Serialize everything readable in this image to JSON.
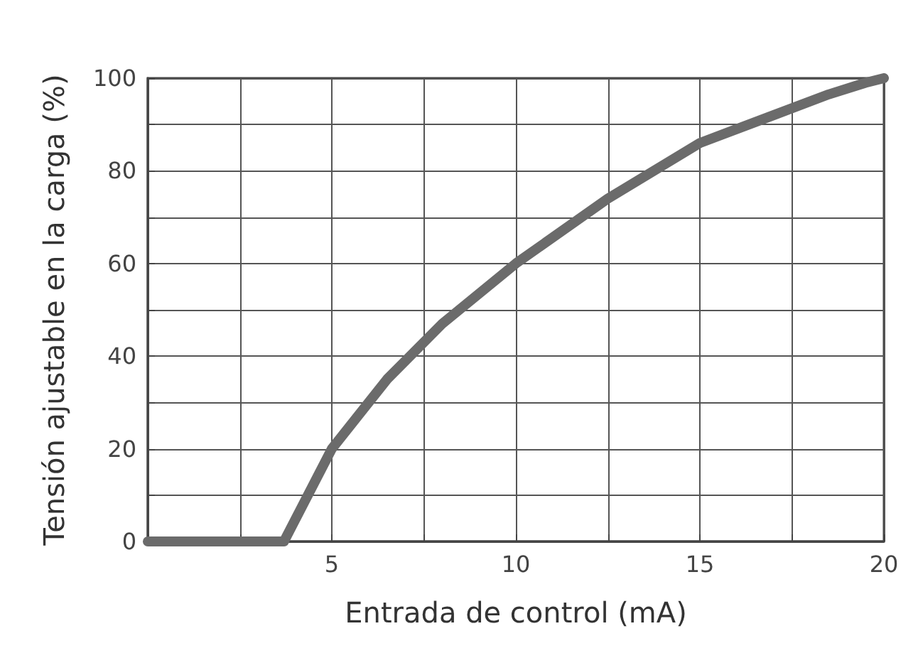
{
  "chart_data": {
    "type": "line",
    "xlabel": "Entrada de control (mA)",
    "ylabel": "Tensión ajustable en la carga (%)",
    "x": [
      0,
      3.7,
      5,
      6.5,
      8,
      10,
      12.5,
      15,
      17,
      18.5,
      19.5,
      20
    ],
    "series": [
      {
        "color": "#6b6b6b",
        "values": [
          0,
          0,
          20,
          35,
          47,
          60,
          74,
          86,
          92,
          96.5,
          99,
          100
        ]
      }
    ],
    "xlim": [
      0,
      20
    ],
    "xticks": [
      {
        "value": 0,
        "label": null
      },
      {
        "value": 2.5,
        "label": null
      },
      5,
      {
        "value": 7.5,
        "label": null
      },
      10,
      {
        "value": 12.5,
        "label": null
      },
      15,
      {
        "value": 17.5,
        "label": null
      },
      20
    ],
    "ylim": [
      0,
      100
    ],
    "yticks": [
      0,
      {
        "value": 10,
        "label": null
      },
      20,
      {
        "value": 30,
        "label": null
      },
      40,
      {
        "value": 50,
        "label": null
      },
      60,
      {
        "value": 70,
        "label": null
      },
      80,
      {
        "value": 90,
        "label": null
      },
      100
    ],
    "grid": true,
    "line_style": "solid"
  }
}
